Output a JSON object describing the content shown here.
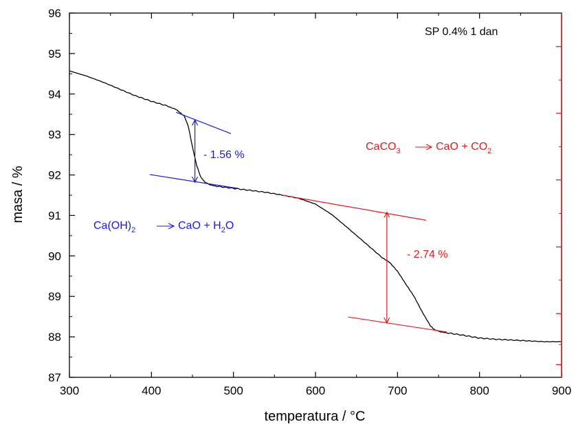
{
  "chart_data": {
    "type": "line",
    "title": "",
    "xlabel": "temperatura / °C",
    "ylabel": "masa / %",
    "xlim": [
      300,
      900
    ],
    "ylim": [
      87,
      96
    ],
    "x_ticks": [
      300,
      400,
      500,
      600,
      700,
      800,
      900
    ],
    "y_ticks": [
      87,
      88,
      89,
      90,
      91,
      92,
      93,
      94,
      95,
      96
    ],
    "grid": false,
    "sample_label": "SP 0.4% 1 dan",
    "series": [
      {
        "color": "#000000",
        "x": [
          300,
          320,
          340,
          360,
          380,
          400,
          420,
          430,
          440,
          445,
          450,
          455,
          460,
          465,
          470,
          480,
          500,
          520,
          540,
          560,
          580,
          600,
          620,
          640,
          660,
          680,
          690,
          700,
          710,
          720,
          730,
          740,
          745,
          750,
          760,
          780,
          800,
          820,
          840,
          860,
          880,
          900
        ],
        "y": [
          94.57,
          94.45,
          94.3,
          94.13,
          93.96,
          93.82,
          93.7,
          93.62,
          93.45,
          93.2,
          92.7,
          92.25,
          91.95,
          91.82,
          91.77,
          91.72,
          91.67,
          91.62,
          91.57,
          91.5,
          91.42,
          91.28,
          91.02,
          90.68,
          90.33,
          89.98,
          89.85,
          89.62,
          89.3,
          89.0,
          88.62,
          88.28,
          88.18,
          88.14,
          88.1,
          88.04,
          87.97,
          87.94,
          87.92,
          87.9,
          87.88,
          87.88
        ]
      }
    ],
    "annotations": {
      "step1": {
        "color": "#1a1adc",
        "pct_label": "- 1.56 %",
        "reaction": {
          "lhs": "Ca(OH)",
          "lhs_sub": "2",
          "rhs_a": "CaO + H",
          "rhs_sub": "2",
          "rhs_b": "O"
        },
        "tangent_upper": {
          "x": [
            430,
            497
          ],
          "y": [
            93.55,
            93.02
          ]
        },
        "tangent_lower": {
          "x": [
            398,
            505
          ],
          "y": [
            92.01,
            91.67
          ]
        },
        "arrow": {
          "x": 453,
          "y_top": 93.36,
          "y_bottom": 91.82
        }
      },
      "step2": {
        "color": "#e41a1c",
        "pct_label": "- 2.74 %",
        "reaction": {
          "lhs": "CaCO",
          "lhs_sub": "3",
          "rhs_a": "CaO + CO",
          "rhs_sub": "2",
          "rhs_b": ""
        },
        "tangent_upper": {
          "x": [
            560,
            735
          ],
          "y": [
            91.5,
            90.88
          ]
        },
        "tangent_lower": {
          "x": [
            640,
            760
          ],
          "y": [
            88.49,
            88.12
          ]
        },
        "arrow": {
          "x": 687,
          "y_top": 91.08,
          "y_bottom": 88.34
        }
      }
    },
    "right_axis": {
      "color": "#e41a1c"
    }
  }
}
